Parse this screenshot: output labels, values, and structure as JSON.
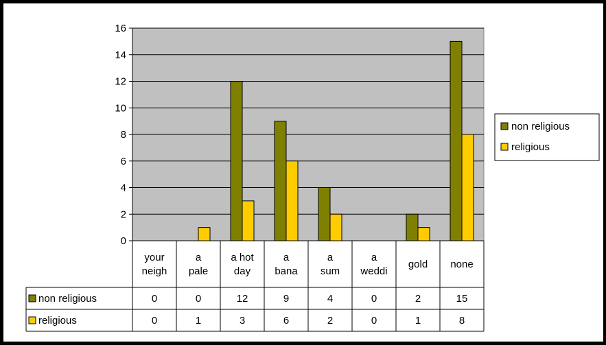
{
  "chart_data": {
    "type": "bar",
    "title": "",
    "xlabel": "",
    "ylabel": "",
    "ylim": [
      0,
      16
    ],
    "yticks": [
      0,
      2,
      4,
      6,
      8,
      10,
      12,
      14,
      16
    ],
    "grid": true,
    "legend_position": "right",
    "plot_background": "#c0c0c0",
    "categories": [
      [
        "your",
        "neigh"
      ],
      [
        "a",
        "pale"
      ],
      [
        "a hot",
        "day"
      ],
      [
        "a",
        "bana"
      ],
      [
        "a",
        "sum"
      ],
      [
        "a",
        "weddi"
      ],
      [
        "gold"
      ],
      [
        "none"
      ]
    ],
    "series": [
      {
        "name": "non religious",
        "color": "#808000",
        "values": [
          0,
          0,
          12,
          9,
          4,
          0,
          2,
          15
        ]
      },
      {
        "name": "religious",
        "color": "#ffcc00",
        "values": [
          0,
          1,
          3,
          6,
          2,
          0,
          1,
          8
        ]
      }
    ],
    "data_table": true
  }
}
